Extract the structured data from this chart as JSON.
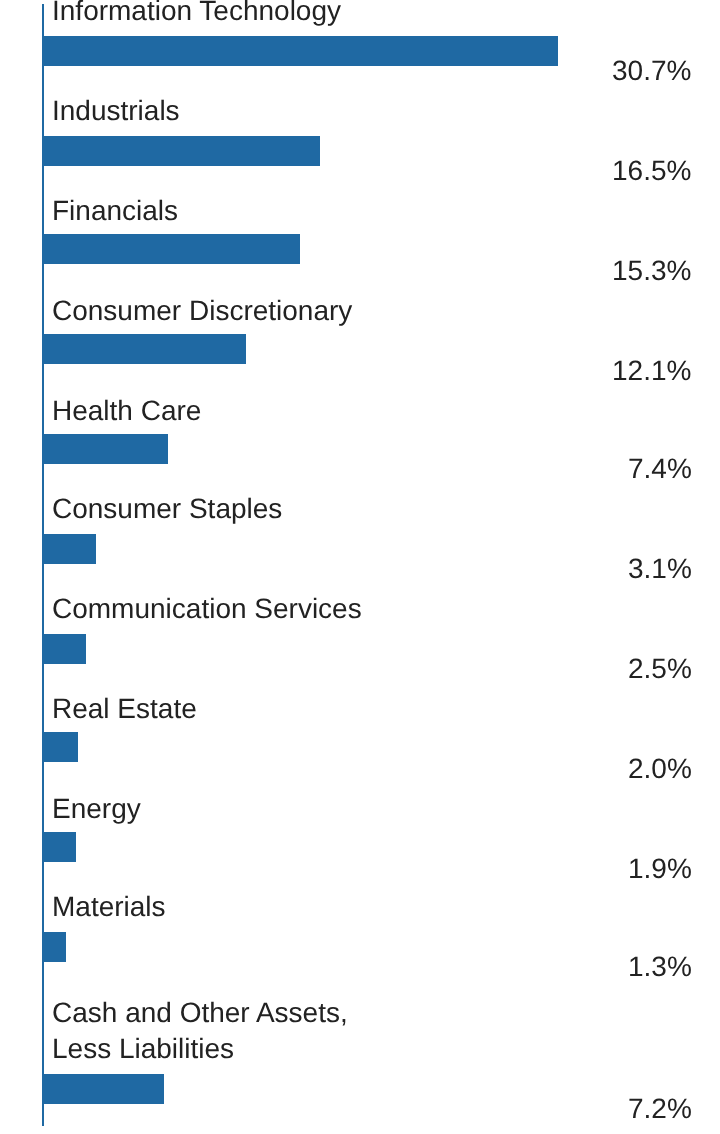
{
  "chart_data": {
    "type": "bar",
    "orientation": "horizontal",
    "value_labels": [
      "30.7%",
      "16.5%",
      "15.3%",
      "12.1%",
      "7.4%",
      "3.1%",
      "2.5%",
      "2.0%",
      "1.9%",
      "1.3%",
      "7.2%"
    ],
    "categories": [
      "Information Technology",
      "Industrials",
      "Financials",
      "Consumer Discretionary",
      "Health Care",
      "Consumer Staples",
      "Communication Services",
      "Real Estate",
      "Energy",
      "Materials",
      "Cash and Other Assets, Less Liabilities"
    ],
    "values": [
      30.7,
      16.5,
      15.3,
      12.1,
      7.4,
      3.1,
      2.5,
      2.0,
      1.9,
      1.3,
      7.2
    ],
    "color": "#1f69a3"
  }
}
